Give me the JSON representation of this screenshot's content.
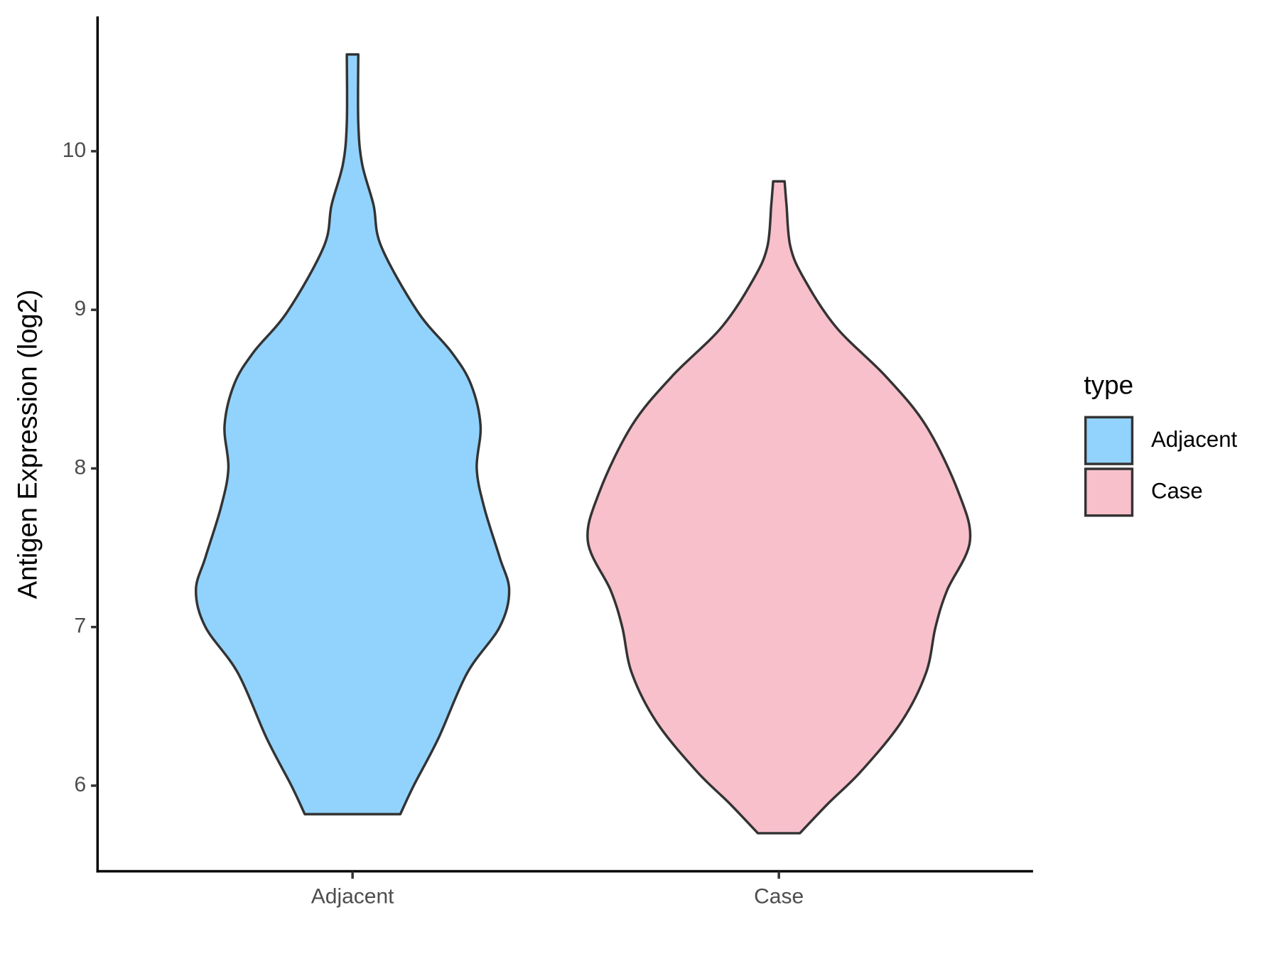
{
  "chart_data": {
    "type": "violin",
    "y_label": "Antigen Expression (log2)",
    "categories": [
      "Adjacent",
      "Case"
    ],
    "legend_title": "type",
    "legend_position": "right",
    "ylim": [
      5.46,
      10.85
    ],
    "yticks": [
      6,
      7,
      8,
      9,
      10
    ],
    "series": [
      {
        "name": "Adjacent",
        "color": "#92d3fd",
        "y": [
          5.82,
          6.0,
          6.3,
          6.71,
          7.0,
          7.23,
          7.44,
          7.75,
          8.0,
          8.27,
          8.53,
          8.73,
          8.99,
          9.4,
          9.66,
          9.92,
          10.18,
          10.61
        ],
        "density": [
          0.25,
          0.32,
          0.45,
          0.6,
          0.77,
          0.82,
          0.77,
          0.69,
          0.65,
          0.67,
          0.62,
          0.52,
          0.34,
          0.15,
          0.11,
          0.05,
          0.03,
          0.03
        ]
      },
      {
        "name": "Case",
        "color": "#f7c0cb",
        "y": [
          5.7,
          5.89,
          6.09,
          6.4,
          6.71,
          7.0,
          7.23,
          7.54,
          7.85,
          8.27,
          8.58,
          8.89,
          9.2,
          9.4,
          9.66,
          9.81
        ],
        "density": [
          0.11,
          0.26,
          0.43,
          0.64,
          0.77,
          0.82,
          0.88,
          1.0,
          0.94,
          0.77,
          0.56,
          0.3,
          0.13,
          0.06,
          0.04,
          0.03
        ]
      }
    ]
  }
}
